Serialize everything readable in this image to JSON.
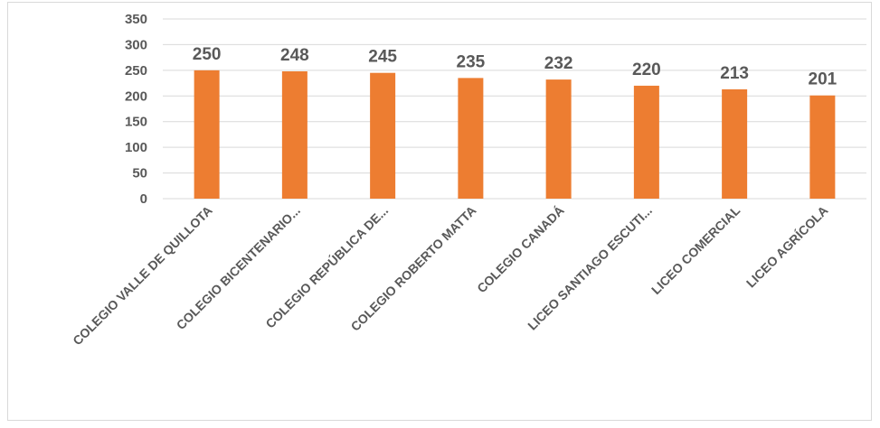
{
  "chart_data": {
    "type": "bar",
    "title": "",
    "xlabel": "",
    "ylabel": "",
    "categories": [
      "COLEGIO VALLE DE QUILLOTA",
      "COLEGIO BICENTENARIO...",
      "COLEGIO REPÚBLICA DE...",
      "COLEGIO ROBERTO MATTA",
      "COLEGIO CANADÁ",
      "LICEO SANTIAGO ESCUTI...",
      "LICEO COMERCIAL",
      "LICEO AGRÍCOLA"
    ],
    "values": [
      250,
      248,
      245,
      235,
      232,
      220,
      213,
      201
    ],
    "data_labels": [
      "250",
      "248",
      "245",
      "235",
      "232",
      "220",
      "213",
      "201"
    ],
    "ylim": [
      0,
      350
    ],
    "yticks": [
      0,
      50,
      100,
      150,
      200,
      250,
      300,
      350
    ],
    "ytick_labels": [
      "0",
      "50",
      "100",
      "150",
      "200",
      "250",
      "300",
      "350"
    ],
    "grid": true,
    "legend": "none",
    "colors": {
      "bar": "#ED7D31",
      "grid": "#d9d9d9",
      "text": "#595959"
    }
  }
}
